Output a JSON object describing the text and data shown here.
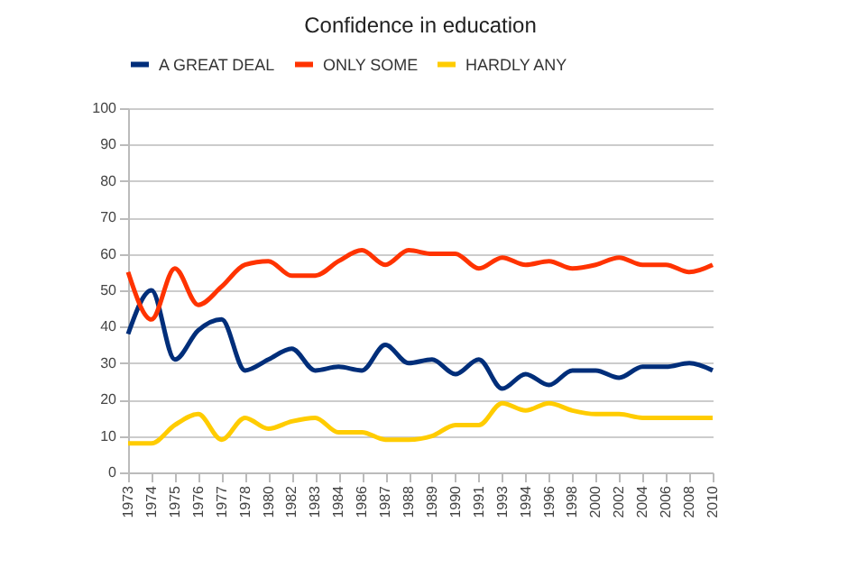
{
  "chart_data": {
    "type": "line",
    "title": "Confidence in education",
    "categories": [
      "1973",
      "1974",
      "1975",
      "1976",
      "1977",
      "1978",
      "1980",
      "1982",
      "1983",
      "1984",
      "1986",
      "1987",
      "1988",
      "1989",
      "1990",
      "1991",
      "1993",
      "1994",
      "1996",
      "1998",
      "2000",
      "2002",
      "2004",
      "2006",
      "2008",
      "2010"
    ],
    "series": [
      {
        "name": "A GREAT DEAL",
        "color": "#002e7a",
        "values": [
          38,
          50,
          31,
          39,
          42,
          28,
          31,
          34,
          28,
          29,
          28,
          35,
          30,
          31,
          27,
          31,
          23,
          27,
          24,
          28,
          28,
          26,
          29,
          29,
          30,
          28
        ]
      },
      {
        "name": "ONLY SOME",
        "color": "#ff3300",
        "values": [
          55,
          42,
          56,
          46,
          51,
          57,
          58,
          54,
          54,
          58,
          61,
          57,
          61,
          60,
          60,
          56,
          59,
          57,
          58,
          56,
          57,
          59,
          57,
          57,
          55,
          57
        ]
      },
      {
        "name": "HARDLY ANY",
        "color": "#ffcc00",
        "values": [
          8,
          8,
          13,
          16,
          9,
          15,
          12,
          14,
          15,
          11,
          11,
          9,
          9,
          10,
          13,
          13,
          19,
          17,
          19,
          17,
          16,
          16,
          15,
          15,
          15,
          15
        ]
      }
    ],
    "ylim": [
      0,
      100
    ],
    "yticks": [
      0,
      10,
      20,
      30,
      40,
      50,
      60,
      70,
      80,
      90,
      100
    ],
    "grid": "y",
    "legend": "top",
    "marker": "none",
    "line_style": "solid"
  }
}
